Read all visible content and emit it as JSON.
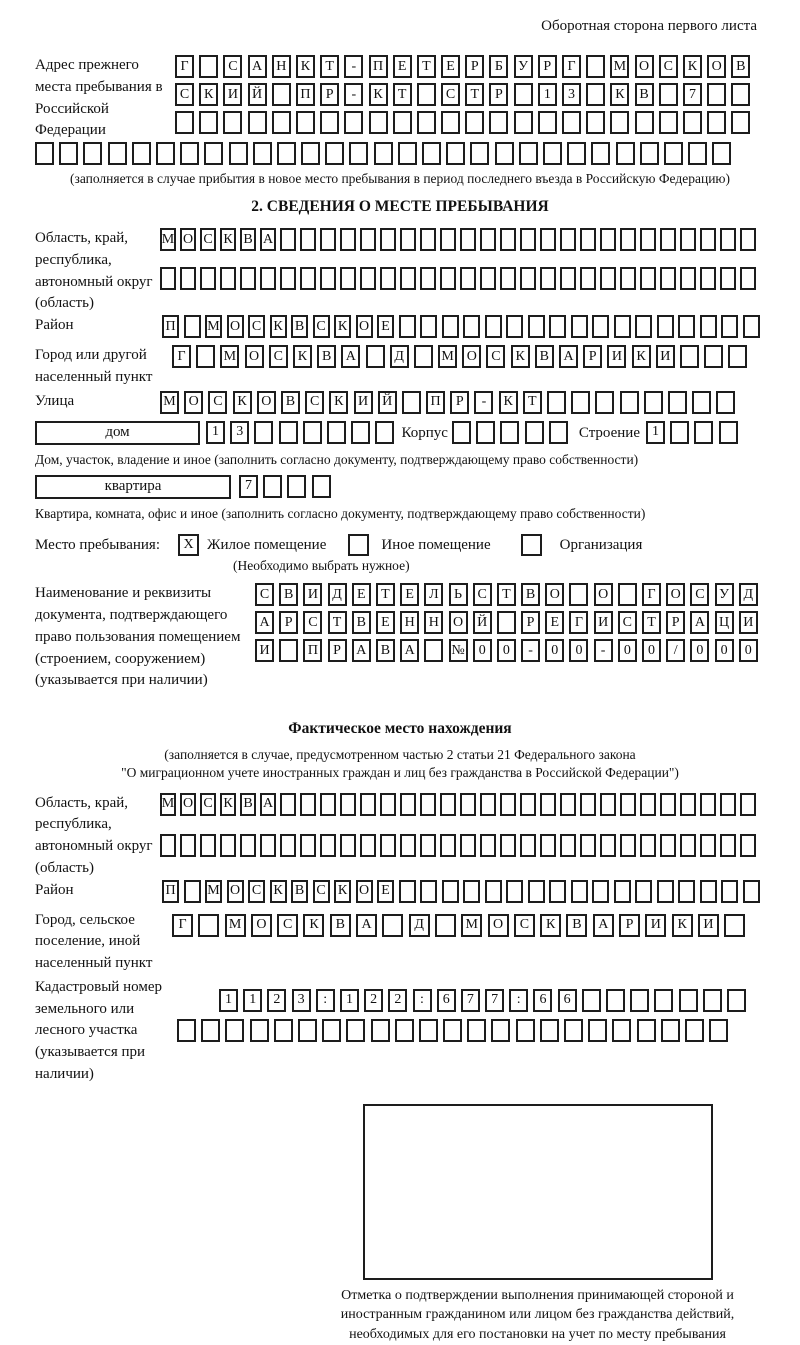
{
  "page_header": "Оборотная сторона первого листа",
  "prev_address": {
    "label": "Адрес прежнего места пребывания в Российской Федерации",
    "rows": [
      {
        "chars": "Г САНКТ-ПЕТЕРБУРГ МОСКОВ",
        "len": 24
      },
      {
        "chars": "СКИЙ ПР-КТ СТР 13 КВ 7",
        "len": 24
      },
      {
        "chars": "",
        "len": 24
      }
    ],
    "overflow_row": {
      "chars": "",
      "len": 29
    },
    "note": "(заполняется в случае прибытия в новое место пребывания в период последнего въезда в Российскую Федерацию)"
  },
  "section2": {
    "title": "2. СВЕДЕНИЯ О МЕСТЕ ПРЕБЫВАНИЯ",
    "region": {
      "label": "Область, край, республика, автономный округ (область)",
      "rows": [
        {
          "chars": "МОСКВА",
          "len": 30
        },
        {
          "chars": "",
          "len": 30
        }
      ]
    },
    "district": {
      "label": "Район",
      "row": {
        "chars": "П МОСКВСКОЕ",
        "len": 28
      }
    },
    "city": {
      "label": "Город или другой населенный пункт",
      "row": {
        "chars": "Г МОСКВА Д МОСКВАРИКИ",
        "len": 24
      }
    },
    "street": {
      "label": "Улица",
      "row": {
        "chars": "МОСКОВСКИЙ ПР-КТ",
        "len": 24
      }
    },
    "house": {
      "box_label": "дом",
      "row": {
        "chars": "13",
        "len": 8
      },
      "korpus_label": "Корпус",
      "korpus_row": {
        "chars": "",
        "len": 5
      },
      "stroenie_label": "Строение",
      "stroenie_row": {
        "chars": "1",
        "len": 4
      },
      "note": "Дом, участок, владение и иное (заполнить согласно документу, подтверждающему право собственности)"
    },
    "apartment": {
      "box_label": "квартира",
      "row": {
        "chars": "7",
        "len": 4
      },
      "note": "Квартира, комната, офис и иное (заполнить согласно документу, подтверждающему право собственности)"
    },
    "stay_type": {
      "label": "Место пребывания:",
      "options": [
        {
          "label": "Жилое помещение",
          "checked": "X"
        },
        {
          "label": "Иное помещение",
          "checked": ""
        },
        {
          "label": "Организация",
          "checked": ""
        }
      ],
      "note": "(Необходимо выбрать нужное)"
    },
    "document": {
      "label": "Наименование и реквизиты документа, подтверждающего право пользования помещением (строением, сооружением) (указывается при наличии)",
      "rows": [
        {
          "chars": "СВИДЕТЕЛЬСТВО О ГОСУД",
          "len": 21
        },
        {
          "chars": "АРСТВЕННОЙ РЕГИСТРАЦИ",
          "len": 21
        },
        {
          "chars": "И ПРАВА №00-00-00/000",
          "len": 21
        }
      ]
    }
  },
  "actual_location": {
    "title": "Фактическое место нахождения",
    "note_line1": "(заполняется в случае, предусмотренном частью 2 статьи 21 Федерального закона",
    "note_line2": "\"О миграционном учете иностранных граждан и лиц без гражданства в Российской Федерации\")",
    "region": {
      "label": "Область, край, республика, автономный округ (область)",
      "rows": [
        {
          "chars": "МОСКВА",
          "len": 30
        },
        {
          "chars": "",
          "len": 30
        }
      ]
    },
    "district": {
      "label": "Район",
      "row": {
        "chars": "П МОСКВСКОЕ",
        "len": 28
      }
    },
    "city": {
      "label": "Город, сельское поселение, иной населенный пункт",
      "row": {
        "chars": "Г МОСКВА Д МОСКВАРИКИ",
        "len": 22
      }
    },
    "cadastral": {
      "label": "Кадастровый номер земельного или лесного участка (указывается при наличии)",
      "rows": [
        {
          "chars": "1123:122:677:66",
          "len": 22
        },
        {
          "chars": "",
          "len": 23
        }
      ]
    }
  },
  "confirmation_box": {
    "caption": "Отметка о подтверждении выполнения принимающей стороной и иностранным гражданином или лицом без гражданства действий, необходимых для его постановки на учет по месту пребывания"
  }
}
